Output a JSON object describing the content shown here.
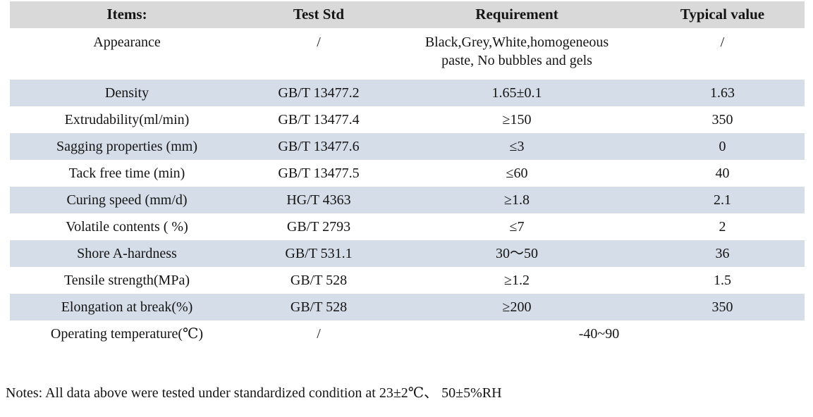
{
  "table": {
    "headers": [
      "Items:",
      "Test Std",
      "Requirement",
      "Typical value"
    ],
    "rows": [
      {
        "item": "Appearance",
        "std": "/",
        "req": "Black,Grey,White,homogeneous\npaste, No bubbles and gels",
        "typical": "/"
      },
      {
        "item": "Density",
        "std": "GB/T 13477.2",
        "req": "1.65±0.1",
        "typical": "1.63"
      },
      {
        "item": "Extrudability(ml/min)",
        "std": "GB/T 13477.4",
        "req": "≥150",
        "typical": "350"
      },
      {
        "item": "Sagging properties (mm)",
        "std": "GB/T 13477.6",
        "req": "≤3",
        "typical": "0"
      },
      {
        "item": "Tack free time (min)",
        "std": "GB/T 13477.5",
        "req": "≤60",
        "typical": "40"
      },
      {
        "item": "Curing speed (mm/d)",
        "std": "HG/T 4363",
        "req": "≥1.8",
        "typical": "2.1"
      },
      {
        "item": "Volatile contents ( %)",
        "std": "GB/T 2793",
        "req": "≤7",
        "typical": "2"
      },
      {
        "item": "Shore A-hardness",
        "std": "GB/T 531.1",
        "req": "30～50",
        "typical": "36"
      },
      {
        "item": "Tensile strength(MPa)",
        "std": "GB/T 528",
        "req": "≥1.2",
        "typical": "1.5"
      },
      {
        "item": "Elongation at break(%)",
        "std": "GB/T 528",
        "req": "≥200",
        "typical": "350"
      },
      {
        "item": "Operating temperature(℃)",
        "std": "/",
        "req": "-40~90"
      }
    ]
  },
  "notes": "Notes: All data above were tested under standardized condition at 23±2℃、 50±5%RH",
  "colors": {
    "header_bg": "#d9d9d9",
    "stripe_bg": "#d5dde9",
    "text": "#141414"
  }
}
